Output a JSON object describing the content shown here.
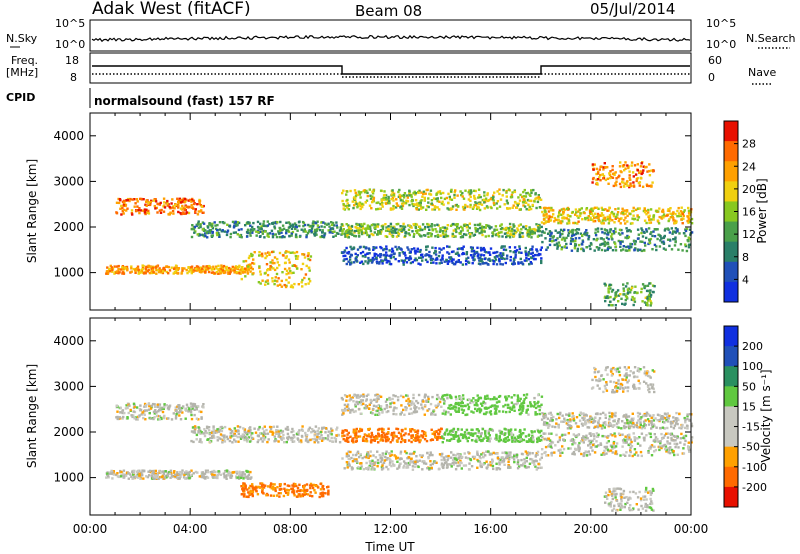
{
  "header": {
    "station": "Adak West (fitACF)",
    "beam": "Beam 08",
    "date": "05/Jul/2014"
  },
  "noise_panel": {
    "left_label": "N.Sky",
    "left_ticks": [
      "10^5",
      "10^0"
    ],
    "right_ticks": [
      "10^5",
      "10^0"
    ],
    "right_label": "N.Search"
  },
  "freq_panel": {
    "left_label_1": "Freq.",
    "left_label_2": "[MHz]",
    "left_ticks": [
      "18",
      "8"
    ],
    "right_ticks": [
      "60",
      "0"
    ],
    "right_label": "Nave"
  },
  "cpid": {
    "label": "CPID",
    "value": "normalsound (fast) 157 RF"
  },
  "colors": {
    "power": [
      "#1030e0",
      "#2050b8",
      "#2a7f68",
      "#4aa04a",
      "#88c820",
      "#f0d010",
      "#ffa000",
      "#ff6a00",
      "#e81000"
    ],
    "velocity": [
      "#e81000",
      "#ff6a00",
      "#ffa000",
      "#c8c8c0",
      "#c8c8c0",
      "#60c840",
      "#2a9060",
      "#2050b8",
      "#1030e0"
    ],
    "ground_scatter": "#b4b4ac"
  },
  "chart_data": [
    {
      "type": "heatmap",
      "name": "Power",
      "ylabel": "Slant Range [km]",
      "xlabel": "",
      "colorbar_label": "Power [dB]",
      "colorbar_ticks": [
        "28",
        "24",
        "20",
        "16",
        "12",
        "8",
        "4"
      ],
      "y_ticks": [
        "4000",
        "3000",
        "2000",
        "1000"
      ],
      "ylim": [
        180,
        4500
      ],
      "xlim": [
        0,
        24
      ],
      "echo_bands": [
        {
          "t": [
            0.6,
            6.4
          ],
          "r0": 1000,
          "r1": 1180,
          "p": 0.25
        },
        {
          "t": [
            4.0,
            10.0
          ],
          "r0": 1800,
          "r1": 2150,
          "p": 0.7
        },
        {
          "t": [
            1.0,
            4.5
          ],
          "r0": 2300,
          "r1": 2650,
          "p": 0.15
        },
        {
          "t": [
            6.0,
            8.8
          ],
          "r0": 700,
          "r1": 1500,
          "p": 0.35
        },
        {
          "t": [
            10.0,
            18.0
          ],
          "r0": 1200,
          "r1": 1600,
          "p": 0.9
        },
        {
          "t": [
            10.0,
            18.0
          ],
          "r0": 1800,
          "r1": 2100,
          "p": 0.55
        },
        {
          "t": [
            10.0,
            18.0
          ],
          "r0": 2400,
          "r1": 2850,
          "p": 0.45
        },
        {
          "t": [
            18.0,
            24.0
          ],
          "r0": 1500,
          "r1": 2000,
          "p": 0.7
        },
        {
          "t": [
            18.0,
            24.0
          ],
          "r0": 2100,
          "r1": 2450,
          "p": 0.35
        },
        {
          "t": [
            20.0,
            22.5
          ],
          "r0": 2900,
          "r1": 3450,
          "p": 0.2
        },
        {
          "t": [
            20.5,
            22.5
          ],
          "r0": 300,
          "r1": 800,
          "p": 0.6
        }
      ]
    },
    {
      "type": "heatmap",
      "name": "Velocity",
      "ylabel": "Slant Range [km]",
      "xlabel": "Time UT",
      "colorbar_label": "Velocity [m s⁻¹]",
      "colorbar_ticks": [
        "200",
        "100",
        "50",
        "15",
        "-15",
        "-50",
        "-100",
        "-200"
      ],
      "y_ticks": [
        "4000",
        "3000",
        "2000",
        "1000"
      ],
      "x_ticks": [
        "00:00",
        "04:00",
        "08:00",
        "12:00",
        "16:00",
        "20:00",
        "00:00"
      ],
      "ylim": [
        180,
        4500
      ],
      "xlim": [
        0,
        24
      ],
      "echo_bands": [
        {
          "t": [
            0.6,
            6.4
          ],
          "r0": 1000,
          "r1": 1180,
          "v": 0
        },
        {
          "t": [
            4.0,
            10.0
          ],
          "r0": 1800,
          "r1": 2150,
          "v": 0
        },
        {
          "t": [
            1.0,
            4.5
          ],
          "r0": 2300,
          "r1": 2650,
          "v": 0
        },
        {
          "t": [
            6.0,
            9.5
          ],
          "r0": 600,
          "r1": 900,
          "v": -60
        },
        {
          "t": [
            10.0,
            18.0
          ],
          "r0": 1200,
          "r1": 1600,
          "v": 0
        },
        {
          "t": [
            10.0,
            14.0
          ],
          "r0": 1800,
          "r1": 2100,
          "v": -60
        },
        {
          "t": [
            14.0,
            18.0
          ],
          "r0": 1800,
          "r1": 2100,
          "v": 30
        },
        {
          "t": [
            10.0,
            14.0
          ],
          "r0": 2400,
          "r1": 2850,
          "v": 0
        },
        {
          "t": [
            14.0,
            18.0
          ],
          "r0": 2400,
          "r1": 2850,
          "v": 30
        },
        {
          "t": [
            18.0,
            24.0
          ],
          "r0": 1500,
          "r1": 2000,
          "v": 0
        },
        {
          "t": [
            18.0,
            24.0
          ],
          "r0": 2100,
          "r1": 2450,
          "v": 0
        },
        {
          "t": [
            20.0,
            22.5
          ],
          "r0": 2900,
          "r1": 3450,
          "v": 0
        },
        {
          "t": [
            20.5,
            22.5
          ],
          "r0": 300,
          "r1": 800,
          "v": 0
        }
      ]
    }
  ]
}
